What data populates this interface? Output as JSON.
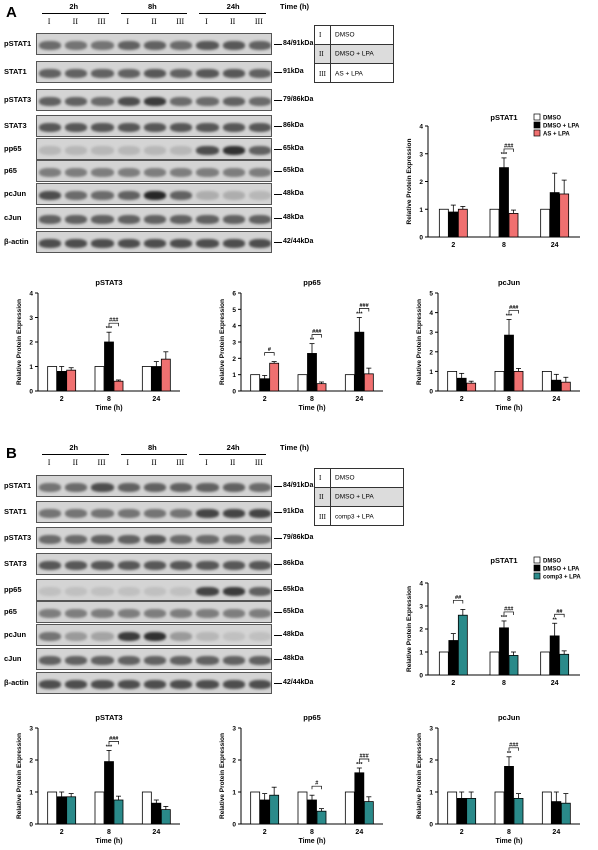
{
  "panel_a": {
    "letter": "A",
    "time_groups": [
      "2h",
      "8h",
      "24h"
    ],
    "time_label": "Time (h)",
    "lanes": [
      "I",
      "II",
      "III"
    ],
    "legend": [
      {
        "code": "I",
        "text": "DMSO"
      },
      {
        "code": "II",
        "text": "DMSO + LPA"
      },
      {
        "code": "III",
        "text": "AS + LPA"
      }
    ],
    "blots": [
      {
        "name": "pSTAT1",
        "kda": "84/91kDa"
      },
      {
        "name": "STAT1",
        "kda": "91kDa"
      },
      {
        "name": "pSTAT3",
        "kda": "79/86kDa"
      },
      {
        "name": "STAT3",
        "kda": "86kDa"
      },
      {
        "name": "pp65",
        "kda": "65kDa"
      },
      {
        "name": "p65",
        "kda": "65kDa"
      },
      {
        "name": "pcJun",
        "kda": "48kDa"
      },
      {
        "name": "cJun",
        "kda": "48kDa"
      },
      {
        "name": "β-actin",
        "kda": "42/44kDa"
      }
    ]
  },
  "panel_b": {
    "letter": "B",
    "time_groups": [
      "2h",
      "8h",
      "24h"
    ],
    "time_label": "Time (h)",
    "lanes": [
      "I",
      "II",
      "III"
    ],
    "legend": [
      {
        "code": "I",
        "text": "DMSO"
      },
      {
        "code": "II",
        "text": "DMSO + LPA"
      },
      {
        "code": "III",
        "text": "comp3 + LPA"
      }
    ],
    "blots": [
      {
        "name": "pSTAT1",
        "kda": "84/91kDa"
      },
      {
        "name": "STAT1",
        "kda": "91kDa"
      },
      {
        "name": "pSTAT3",
        "kda": "79/86kDa"
      },
      {
        "name": "STAT3",
        "kda": "86kDa"
      },
      {
        "name": "pp65",
        "kda": "65kDa"
      },
      {
        "name": "p65",
        "kda": "65kDa"
      },
      {
        "name": "pcJun",
        "kda": "48kDa"
      },
      {
        "name": "cJun",
        "kda": "48kDa"
      },
      {
        "name": "β-actin",
        "kda": "42/44kDa"
      }
    ]
  },
  "colors": {
    "dmso": "#ffffff",
    "dmso_lpa": "#000000",
    "as_lpa": "#f07070",
    "comp3_lpa": "#2a8a8a"
  },
  "chart_data": [
    {
      "id": "A-pSTAT1",
      "type": "bar",
      "title": "pSTAT1",
      "xlabel": "",
      "ylabel": "Relative Protein Expression",
      "ylim": [
        0,
        4
      ],
      "yticks": [
        0,
        1,
        2,
        3,
        4
      ],
      "categories": [
        "2",
        "8",
        "24"
      ],
      "legend": [
        "DMSO",
        "DMSO + LPA",
        "AS + LPA"
      ],
      "series": [
        {
          "name": "DMSO",
          "color": "#ffffff",
          "values": [
            1.0,
            1.0,
            1.0
          ],
          "errors": [
            0,
            0,
            0
          ]
        },
        {
          "name": "DMSO + LPA",
          "color": "#000000",
          "values": [
            0.9,
            2.5,
            1.6
          ],
          "errors": [
            0.25,
            0.35,
            0.7
          ]
        },
        {
          "name": "AS + LPA",
          "color": "#f07070",
          "values": [
            1.0,
            0.85,
            1.55
          ],
          "errors": [
            0.1,
            0.12,
            0.5
          ]
        }
      ],
      "annotations": [
        {
          "category": 1,
          "series": 1,
          "text": "***"
        },
        {
          "category": 1,
          "bracket": [
            1,
            2
          ],
          "text": "###"
        }
      ]
    },
    {
      "id": "A-pSTAT3",
      "type": "bar",
      "title": "pSTAT3",
      "xlabel": "Time (h)",
      "ylabel": "Relative Protein Expression",
      "ylim": [
        0,
        4
      ],
      "yticks": [
        0,
        1,
        2,
        3,
        4
      ],
      "categories": [
        "2",
        "8",
        "24"
      ],
      "series": [
        {
          "name": "DMSO",
          "color": "#ffffff",
          "values": [
            1.0,
            1.0,
            1.0
          ],
          "errors": [
            0,
            0,
            0
          ]
        },
        {
          "name": "DMSO + LPA",
          "color": "#000000",
          "values": [
            0.8,
            2.0,
            1.0
          ],
          "errors": [
            0.2,
            0.4,
            0.2
          ]
        },
        {
          "name": "AS + LPA",
          "color": "#f07070",
          "values": [
            0.85,
            0.4,
            1.3
          ],
          "errors": [
            0.1,
            0.05,
            0.3
          ]
        }
      ],
      "annotations": [
        {
          "category": 1,
          "series": 1,
          "text": "***"
        },
        {
          "category": 1,
          "bracket": [
            1,
            2
          ],
          "text": "###"
        }
      ]
    },
    {
      "id": "A-pp65",
      "type": "bar",
      "title": "pp65",
      "xlabel": "Time (h)",
      "ylabel": "Relative Protein Expression",
      "ylim": [
        0,
        6
      ],
      "yticks": [
        0,
        1,
        2,
        3,
        4,
        5,
        6
      ],
      "categories": [
        "2",
        "8",
        "24"
      ],
      "series": [
        {
          "name": "DMSO",
          "color": "#ffffff",
          "values": [
            1.0,
            1.0,
            1.0
          ],
          "errors": [
            0,
            0,
            0
          ]
        },
        {
          "name": "DMSO + LPA",
          "color": "#000000",
          "values": [
            0.75,
            2.3,
            3.6
          ],
          "errors": [
            0.2,
            0.6,
            0.9
          ]
        },
        {
          "name": "AS + LPA",
          "color": "#f07070",
          "values": [
            1.7,
            0.45,
            1.05
          ],
          "errors": [
            0.1,
            0.1,
            0.35
          ]
        }
      ],
      "annotations": [
        {
          "category": 0,
          "bracket": [
            1,
            2
          ],
          "text": "#"
        },
        {
          "category": 1,
          "series": 1,
          "text": "**"
        },
        {
          "category": 1,
          "bracket": [
            1,
            2
          ],
          "text": "###"
        },
        {
          "category": 2,
          "series": 1,
          "text": "***"
        },
        {
          "category": 2,
          "bracket": [
            1,
            2
          ],
          "text": "###"
        }
      ]
    },
    {
      "id": "A-pcJun",
      "type": "bar",
      "title": "pcJun",
      "xlabel": "Time (h)",
      "ylabel": "Relative Protein Expression",
      "ylim": [
        0,
        5
      ],
      "yticks": [
        0,
        1,
        2,
        3,
        4,
        5
      ],
      "categories": [
        "2",
        "8",
        "24"
      ],
      "series": [
        {
          "name": "DMSO",
          "color": "#ffffff",
          "values": [
            1.0,
            1.0,
            1.0
          ],
          "errors": [
            0,
            0,
            0
          ]
        },
        {
          "name": "DMSO + LPA",
          "color": "#000000",
          "values": [
            0.65,
            2.85,
            0.55
          ],
          "errors": [
            0.25,
            0.8,
            0.3
          ]
        },
        {
          "name": "AS + LPA",
          "color": "#f07070",
          "values": [
            0.4,
            1.0,
            0.45
          ],
          "errors": [
            0.1,
            0.15,
            0.25
          ]
        }
      ],
      "annotations": [
        {
          "category": 1,
          "series": 1,
          "text": "***"
        },
        {
          "category": 1,
          "bracket": [
            1,
            2
          ],
          "text": "###"
        }
      ]
    },
    {
      "id": "B-pSTAT1",
      "type": "bar",
      "title": "pSTAT1",
      "xlabel": "",
      "ylabel": "Relative Protein Expression",
      "ylim": [
        0,
        4
      ],
      "yticks": [
        0,
        1,
        2,
        3,
        4
      ],
      "categories": [
        "2",
        "8",
        "24"
      ],
      "legend": [
        "DMSO",
        "DMSO + LPA",
        "comp3 + LPA"
      ],
      "series": [
        {
          "name": "DMSO",
          "color": "#ffffff",
          "values": [
            1.0,
            1.0,
            1.0
          ],
          "errors": [
            0,
            0,
            0
          ]
        },
        {
          "name": "DMSO + LPA",
          "color": "#000000",
          "values": [
            1.5,
            2.05,
            1.7
          ],
          "errors": [
            0.3,
            0.3,
            0.55
          ]
        },
        {
          "name": "comp3 + LPA",
          "color": "#2a8a8a",
          "values": [
            2.6,
            0.85,
            0.9
          ],
          "errors": [
            0.25,
            0.15,
            0.15
          ]
        }
      ],
      "annotations": [
        {
          "category": 0,
          "bracket": [
            1,
            2
          ],
          "text": "##"
        },
        {
          "category": 1,
          "series": 1,
          "text": "***"
        },
        {
          "category": 1,
          "bracket": [
            1,
            2
          ],
          "text": "###"
        },
        {
          "category": 2,
          "series": 1,
          "text": "**"
        },
        {
          "category": 2,
          "bracket": [
            1,
            2
          ],
          "text": "##"
        }
      ]
    },
    {
      "id": "B-pSTAT3",
      "type": "bar",
      "title": "pSTAT3",
      "xlabel": "Time (h)",
      "ylabel": "Relative Protein Expression",
      "ylim": [
        0,
        3
      ],
      "yticks": [
        0,
        1,
        2,
        3
      ],
      "categories": [
        "2",
        "8",
        "24"
      ],
      "series": [
        {
          "name": "DMSO",
          "color": "#ffffff",
          "values": [
            1.0,
            1.0,
            1.0
          ],
          "errors": [
            0,
            0,
            0
          ]
        },
        {
          "name": "DMSO + LPA",
          "color": "#000000",
          "values": [
            0.85,
            1.95,
            0.65
          ],
          "errors": [
            0.15,
            0.35,
            0.1
          ]
        },
        {
          "name": "comp3 + LPA",
          "color": "#2a8a8a",
          "values": [
            0.85,
            0.75,
            0.45
          ],
          "errors": [
            0.1,
            0.12,
            0.1
          ]
        }
      ],
      "annotations": [
        {
          "category": 1,
          "series": 1,
          "text": "***"
        },
        {
          "category": 1,
          "bracket": [
            1,
            2
          ],
          "text": "###"
        }
      ]
    },
    {
      "id": "B-pp65",
      "type": "bar",
      "title": "pp65",
      "xlabel": "Time (h)",
      "ylabel": "Relative Protein Expression",
      "ylim": [
        0,
        3
      ],
      "yticks": [
        0,
        1,
        2,
        3
      ],
      "categories": [
        "2",
        "8",
        "24"
      ],
      "series": [
        {
          "name": "DMSO",
          "color": "#ffffff",
          "values": [
            1.0,
            1.0,
            1.0
          ],
          "errors": [
            0,
            0,
            0
          ]
        },
        {
          "name": "DMSO + LPA",
          "color": "#000000",
          "values": [
            0.75,
            0.75,
            1.6
          ],
          "errors": [
            0.2,
            0.15,
            0.15
          ]
        },
        {
          "name": "comp3 + LPA",
          "color": "#2a8a8a",
          "values": [
            0.9,
            0.4,
            0.7
          ],
          "errors": [
            0.25,
            0.08,
            0.15
          ]
        }
      ],
      "annotations": [
        {
          "category": 1,
          "bracket": [
            1,
            2
          ],
          "text": "#"
        },
        {
          "category": 2,
          "series": 1,
          "text": "***"
        },
        {
          "category": 2,
          "bracket": [
            1,
            2
          ],
          "text": "###"
        }
      ]
    },
    {
      "id": "B-pcJun",
      "type": "bar",
      "title": "pcJun",
      "xlabel": "Time (h)",
      "ylabel": "Relative Protein Expression",
      "ylim": [
        0,
        3
      ],
      "yticks": [
        0,
        1,
        2,
        3
      ],
      "categories": [
        "2",
        "8",
        "24"
      ],
      "series": [
        {
          "name": "DMSO",
          "color": "#ffffff",
          "values": [
            1.0,
            1.0,
            1.0
          ],
          "errors": [
            0,
            0,
            0
          ]
        },
        {
          "name": "DMSO + LPA",
          "color": "#000000",
          "values": [
            0.8,
            1.8,
            0.7
          ],
          "errors": [
            0.2,
            0.3,
            0.3
          ]
        },
        {
          "name": "comp3 + LPA",
          "color": "#2a8a8a",
          "values": [
            0.8,
            0.8,
            0.65
          ],
          "errors": [
            0.2,
            0.15,
            0.3
          ]
        }
      ],
      "annotations": [
        {
          "category": 1,
          "series": 1,
          "text": "**"
        },
        {
          "category": 1,
          "bracket": [
            1,
            2
          ],
          "text": "###"
        }
      ]
    }
  ]
}
